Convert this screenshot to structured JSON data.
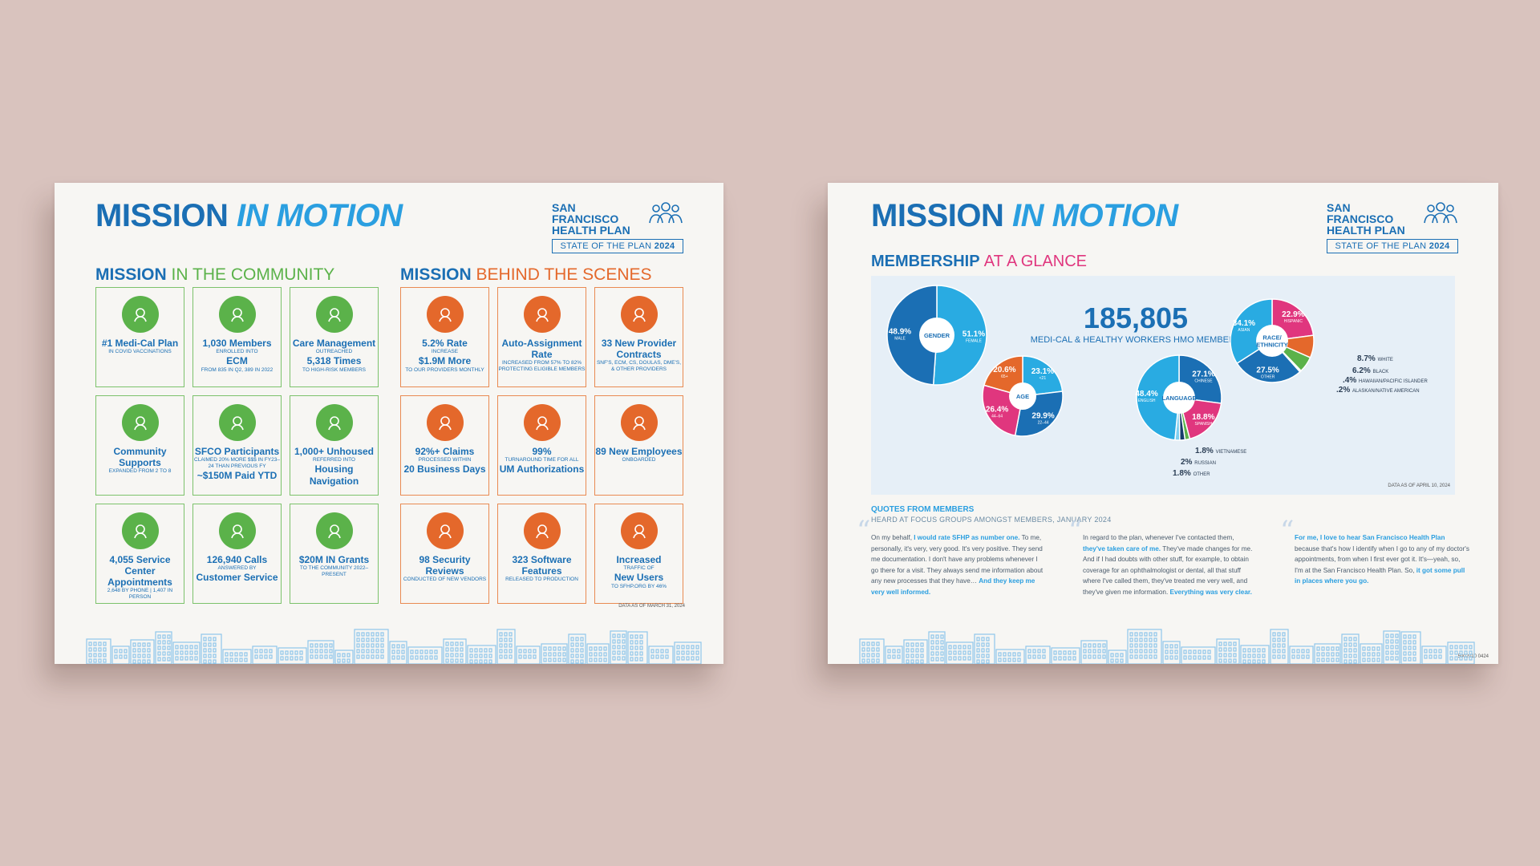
{
  "brand": {
    "title_main": "MISSION",
    "title_accent": "IN MOTION",
    "logo_name": "SAN FRANCISCO HEALTH PLAN",
    "logo_sub_text": "STATE OF THE PLAN",
    "logo_sub_year": "2024"
  },
  "left": {
    "community_title_main": "MISSION",
    "community_title_accent": "IN THE COMMUNITY",
    "scenes_title_main": "MISSION",
    "scenes_title_accent": "BEHIND THE SCENES",
    "community_tiles": [
      {
        "icon": "award-icon",
        "l1": "#1 Medi-Cal Plan",
        "l2": "IN COVID VACCINATIONS",
        "l3": ""
      },
      {
        "icon": "members-icon",
        "l1": "1,030 Members",
        "l2": "ENROLLED INTO",
        "l3": "ECM",
        "l4": "FROM 835 IN Q2, 389 IN 2022"
      },
      {
        "icon": "care-icon",
        "l1": "Care Management",
        "l2": "OUTREACHED",
        "l3": "5,318 Times",
        "l4": "TO HIGH-RISK MEMBERS"
      },
      {
        "icon": "handshake-icon",
        "l1": "Community Supports",
        "l2": "EXPANDED FROM 2 TO 8",
        "l3": ""
      },
      {
        "icon": "hand-money-icon",
        "l1": "SFCO Participants",
        "l2": "CLAIMED 20% MORE $$$ IN FY23–24 THAN PREVIOUS FY",
        "l3": "~$150M Paid YTD"
      },
      {
        "icon": "location-icon",
        "l1": "1,000+ Unhoused",
        "l2": "REFERRED INTO",
        "l3": "Housing Navigation"
      },
      {
        "icon": "calendar-icon",
        "l1": "4,055 Service Center Appointments",
        "l2": "2,648 BY PHONE | 1,407 IN PERSON",
        "l3": ""
      },
      {
        "icon": "headset-icon",
        "l1": "126,940 Calls",
        "l2": "ANSWERED BY",
        "l3": "Customer Service"
      },
      {
        "icon": "grant-icon",
        "l1": "$20M IN Grants",
        "l2": "TO THE COMMUNITY 2022–PRESENT",
        "l3": ""
      }
    ],
    "scenes_tiles": [
      {
        "icon": "monitor-dollar-icon",
        "l1": "5.2% Rate",
        "l2": "INCREASE",
        "l3": "$1.9M More",
        "l4": "TO OUR PROVIDERS MONTHLY"
      },
      {
        "icon": "chart-up-icon",
        "l1": "Auto-Assignment Rate",
        "l2": "INCREASED FROM 57% TO 82%",
        "l3": "",
        "l4": "PROTECTING ELIGIBLE MEMBERS"
      },
      {
        "icon": "contract-icon",
        "l1": "33 New Provider Contracts",
        "l2": "SNF'S, ECM, CS, DOULAS, DME'S, & OTHER PROVIDERS",
        "l3": ""
      },
      {
        "icon": "document-icon",
        "l1": "92%+ Claims",
        "l2": "PROCESSED WITHIN",
        "l3": "20 Business Days"
      },
      {
        "icon": "stopwatch-icon",
        "l1": "99%",
        "l2": "TURNAROUND TIME FOR ALL",
        "l3": "UM Authorizations"
      },
      {
        "icon": "employees-icon",
        "l1": "89 New Employees",
        "l2": "ONBOARDED",
        "l3": ""
      },
      {
        "icon": "shield-person-icon",
        "l1": "98 Security Reviews",
        "l2": "CONDUCTED OF NEW VENDORS",
        "l3": ""
      },
      {
        "icon": "software-icon",
        "l1": "323 Software Features",
        "l2": "RELEASED TO PRODUCTION",
        "l3": ""
      },
      {
        "icon": "website-icon",
        "l1": "Increased",
        "l2": "TRAFFIC OF",
        "l3": "New Users",
        "l4": "TO sfhp.org BY 46%"
      }
    ],
    "data_note": "DATA AS OF MARCH 31, 2024"
  },
  "right": {
    "membership_title_main": "MEMBERSHIP",
    "membership_title_accent": "AT A GLANCE",
    "total_members": "185,805",
    "total_members_label": "MEDI-CAL & HEALTHY WORKERS HMO MEMBERS",
    "data_note": "DATA AS OF APRIL 10, 2024",
    "quotes_title": "QUOTES FROM MEMBERS",
    "quotes_subtitle": "HEARD AT FOCUS GROUPS AMONGST MEMBERS, JANUARY 2024",
    "quotes": [
      {
        "a": "On my behalf, ",
        "b": "I would rate SFHP as number one.",
        "c": " To me, personally, it's very, very good. It's very positive. They send me documentation. I don't have any problems whenever I go there for a visit. They always send me information about any new processes that they have… ",
        "d": "And they keep me very well informed."
      },
      {
        "a": "In regard to the plan, whenever I've contacted them, ",
        "b": "they've taken care of me.",
        "c": " They've made changes for me. And if I had doubts with other stuff, for example, to obtain coverage for an ophthalmologist or dental, all that stuff where I've called them, they've treated me very well, and they've given me information. ",
        "d": "Everything was very clear."
      },
      {
        "a": "",
        "b": "For me, I love to hear San Francisco Health Plan",
        "c": " because that's how I identify when I go to any of my doctor's appointments, from when I first ever got it. It's—yeah, so, I'm at the San Francisco Health Plan. So, ",
        "d": "it got some pull in places where you go."
      }
    ],
    "footer_code": "5002010 0424"
  },
  "chart_data": [
    {
      "type": "pie",
      "title": "GENDER",
      "categories": [
        "FEMALE",
        "MALE"
      ],
      "values": [
        51.1,
        48.9
      ],
      "colors": [
        "#29abe2",
        "#1b6fb4"
      ]
    },
    {
      "type": "pie",
      "title": "AGE",
      "categories": [
        "<21",
        "22–44",
        "44–64",
        "65+"
      ],
      "values": [
        23.1,
        29.9,
        26.4,
        20.6
      ],
      "colors": [
        "#29abe2",
        "#1b6fb4",
        "#e0367e",
        "#e4682b"
      ]
    },
    {
      "type": "pie",
      "title": "LANGUAGE",
      "categories": [
        "CHINESE",
        "SPANISH",
        "VIETNAMESE",
        "RUSSIAN",
        "OTHER",
        "ENGLISH"
      ],
      "values": [
        27.1,
        18.8,
        1.8,
        2,
        1.8,
        48.4
      ],
      "colors": [
        "#1b6fb4",
        "#e0367e",
        "#5bb24a",
        "#163d6b",
        "#7ecff0",
        "#29abe2"
      ]
    },
    {
      "type": "pie",
      "title": "RACE/ ETHNICITY",
      "categories": [
        "HISPANIC",
        "WHITE",
        "BLACK",
        "HAWAIIAN/PACIFIC ISLANDER",
        "ALASKAN/NATIVE AMERICAN",
        "OTHER",
        "ASIAN"
      ],
      "values": [
        22.9,
        8.7,
        6.2,
        0.4,
        0.2,
        27.5,
        34.1
      ],
      "colors": [
        "#e0367e",
        "#e4682b",
        "#5bb24a",
        "#163d6b",
        "#7ecff0",
        "#1b6fb4",
        "#29abe2"
      ]
    }
  ]
}
